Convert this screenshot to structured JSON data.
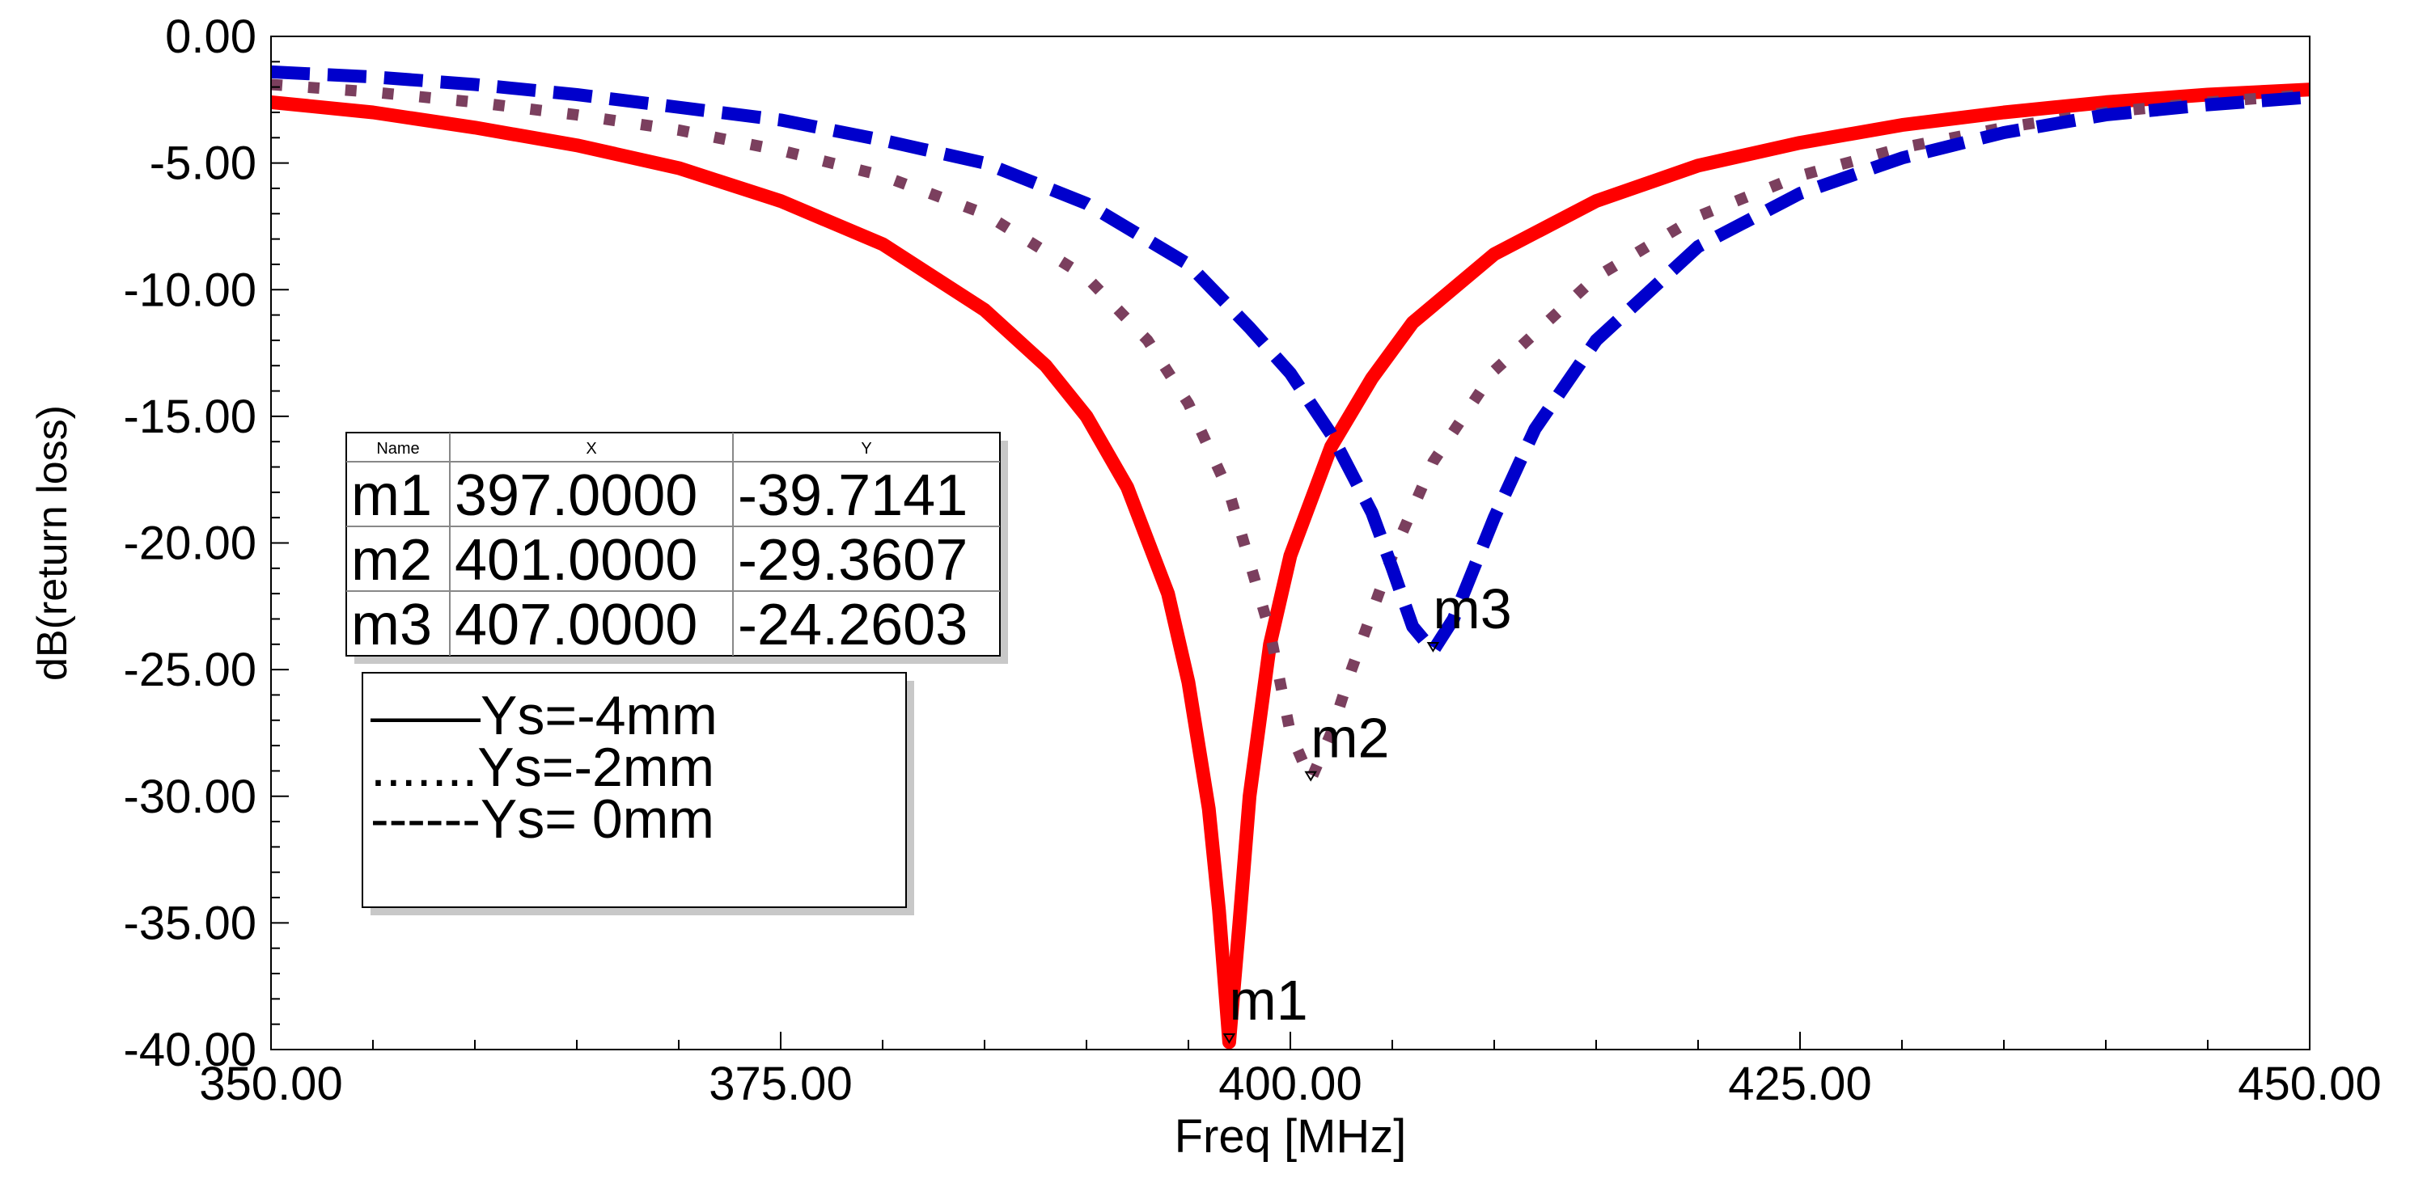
{
  "chart_data": {
    "type": "line",
    "title": "",
    "xlabel": "Freq [MHz]",
    "ylabel": "dB(return loss)",
    "xlim": [
      350,
      450
    ],
    "ylim": [
      -40,
      0
    ],
    "grid": false,
    "x_ticks": [
      "350.00",
      "375.00",
      "400.00",
      "425.00",
      "450.00"
    ],
    "x_tick_values": [
      350,
      375,
      400,
      425,
      450
    ],
    "y_ticks": [
      "0.00",
      "-5.00",
      "-10.00",
      "-15.00",
      "-20.00",
      "-25.00",
      "-30.00",
      "-35.00",
      "-40.00"
    ],
    "y_tick_values": [
      0,
      -5,
      -10,
      -15,
      -20,
      -25,
      -30,
      -35,
      -40
    ],
    "series": [
      {
        "name": "Ys=-4mm",
        "legend_label": "Ys=-4mm",
        "legend_sample": "——",
        "style": "solid",
        "color": "#ff0000",
        "x": [
          350,
          355,
          360,
          365,
          370,
          375,
          380,
          385,
          388,
          390,
          392,
          394,
          395,
          396,
          396.5,
          397,
          397.5,
          398,
          399,
          400,
          402,
          404,
          406,
          410,
          415,
          420,
          425,
          430,
          435,
          440,
          445,
          450
        ],
        "y": [
          -2.6,
          -3.0,
          -3.6,
          -4.3,
          -5.2,
          -6.5,
          -8.2,
          -10.8,
          -13.0,
          -15.0,
          -17.8,
          -22.0,
          -25.5,
          -30.5,
          -34.5,
          -39.71,
          -35.0,
          -30.0,
          -24.0,
          -20.5,
          -16.2,
          -13.5,
          -11.3,
          -8.6,
          -6.5,
          -5.1,
          -4.2,
          -3.5,
          -3.0,
          -2.6,
          -2.3,
          -2.1
        ]
      },
      {
        "name": "Ys=-2mm",
        "legend_label": "Ys=-2mm",
        "legend_sample": ".......",
        "style": "dotted",
        "color": "#7b3f5e",
        "x": [
          350,
          355,
          360,
          365,
          370,
          375,
          380,
          385,
          390,
          393,
          395,
          397,
          399,
          400,
          401,
          402,
          403,
          405,
          407,
          410,
          415,
          420,
          425,
          430,
          435,
          440,
          445,
          450
        ],
        "y": [
          -1.9,
          -2.2,
          -2.6,
          -3.1,
          -3.7,
          -4.5,
          -5.5,
          -7.0,
          -9.5,
          -12.0,
          -14.5,
          -18.0,
          -23.5,
          -27.5,
          -29.36,
          -27.5,
          -25.0,
          -20.5,
          -16.8,
          -13.2,
          -9.5,
          -7.1,
          -5.5,
          -4.4,
          -3.6,
          -3.0,
          -2.6,
          -2.3
        ]
      },
      {
        "name": "Ys= 0mm",
        "legend_label": "Ys= 0mm",
        "legend_sample": "------",
        "style": "dashed",
        "color": "#0000cc",
        "x": [
          350,
          355,
          360,
          365,
          370,
          375,
          380,
          385,
          390,
          395,
          398,
          400,
          402,
          404,
          405,
          406,
          407,
          408,
          409,
          410,
          412,
          415,
          420,
          425,
          430,
          435,
          440,
          445,
          450
        ],
        "y": [
          -1.4,
          -1.6,
          -1.9,
          -2.3,
          -2.8,
          -3.3,
          -4.1,
          -5.0,
          -6.6,
          -9.0,
          -11.5,
          -13.3,
          -15.7,
          -18.8,
          -21.0,
          -23.3,
          -24.26,
          -23.0,
          -21.0,
          -19.0,
          -15.5,
          -12.0,
          -8.3,
          -6.2,
          -4.8,
          -3.8,
          -3.1,
          -2.7,
          -2.4
        ]
      }
    ],
    "markers": [
      {
        "name": "m1",
        "x": 397.0,
        "y": -39.7141,
        "x_text": "397.0000",
        "y_text": "-39.7141"
      },
      {
        "name": "m2",
        "x": 401.0,
        "y": -29.3607,
        "x_text": "401.0000",
        "y_text": "-29.3607"
      },
      {
        "name": "m3",
        "x": 407.0,
        "y": -24.2603,
        "x_text": "407.0000",
        "y_text": "-24.2603"
      }
    ],
    "marker_table": {
      "headers": [
        "Name",
        "X",
        "Y"
      ],
      "placement": "left-middle"
    },
    "legend_placement": "left-lower"
  }
}
